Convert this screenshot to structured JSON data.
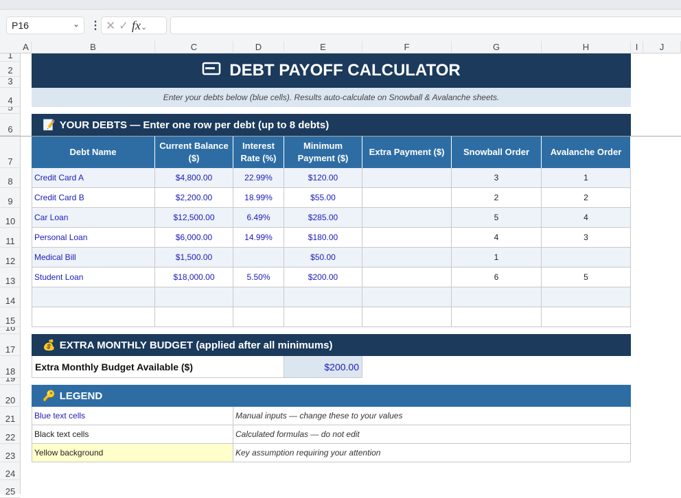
{
  "formula_bar": {
    "name_box": "P16",
    "formula": ""
  },
  "columns": [
    "A",
    "B",
    "C",
    "D",
    "E",
    "F",
    "G",
    "H",
    "I",
    "J"
  ],
  "rows": [
    "1",
    "2",
    "3",
    "4",
    "5",
    "6",
    "7",
    "8",
    "9",
    "10",
    "11",
    "12",
    "13",
    "14",
    "15",
    "16",
    "17",
    "18",
    "19",
    "20",
    "21",
    "22",
    "23",
    "24",
    "25"
  ],
  "title": "DEBT PAYOFF CALCULATOR",
  "subtitle": "Enter your debts below (blue cells). Results auto-calculate on Snowball & Avalanche sheets.",
  "debts_section": {
    "title": "YOUR DEBTS  —  Enter one row per debt (up to 8 debts)",
    "headers": [
      "Debt Name",
      "Current Balance ($)",
      "Interest Rate (%)",
      "Minimum Payment ($)",
      "Extra Payment ($)",
      "Snowball Order",
      "Avalanche Order"
    ],
    "rows": [
      [
        "Credit Card A",
        "$4,800.00",
        "22.99%",
        "$120.00",
        "",
        "3",
        "1"
      ],
      [
        "Credit Card B",
        "$2,200.00",
        "18.99%",
        "$55.00",
        "",
        "2",
        "2"
      ],
      [
        "Car Loan",
        "$12,500.00",
        "6.49%",
        "$285.00",
        "",
        "5",
        "4"
      ],
      [
        "Personal Loan",
        "$6,000.00",
        "14.99%",
        "$180.00",
        "",
        "4",
        "3"
      ],
      [
        "Medical Bill",
        "$1,500.00",
        "",
        "$50.00",
        "",
        "1",
        ""
      ],
      [
        "Student Loan",
        "$18,000.00",
        "5.50%",
        "$200.00",
        "",
        "6",
        "5"
      ],
      [
        "",
        "",
        "",
        "",
        "",
        "",
        ""
      ],
      [
        "",
        "",
        "",
        "",
        "",
        "",
        ""
      ]
    ]
  },
  "budget_section": {
    "title": "EXTRA MONTHLY BUDGET  (applied after all minimums)",
    "label": "Extra Monthly Budget Available ($)",
    "value": "$200.00"
  },
  "legend": {
    "title": "LEGEND",
    "items": [
      {
        "label": "Blue text cells",
        "desc": "Manual inputs — change these to your values"
      },
      {
        "label": "Black text cells",
        "desc": "Calculated formulas — do not edit"
      },
      {
        "label": "Yellow background",
        "desc": "Key assumption requiring your attention"
      }
    ]
  },
  "colors": {
    "navy": "#1b3a5c",
    "blue": "#2e6da4",
    "input_text": "#1a1ab8",
    "light": "#dce6f1",
    "yellow": "#ffffcc"
  }
}
